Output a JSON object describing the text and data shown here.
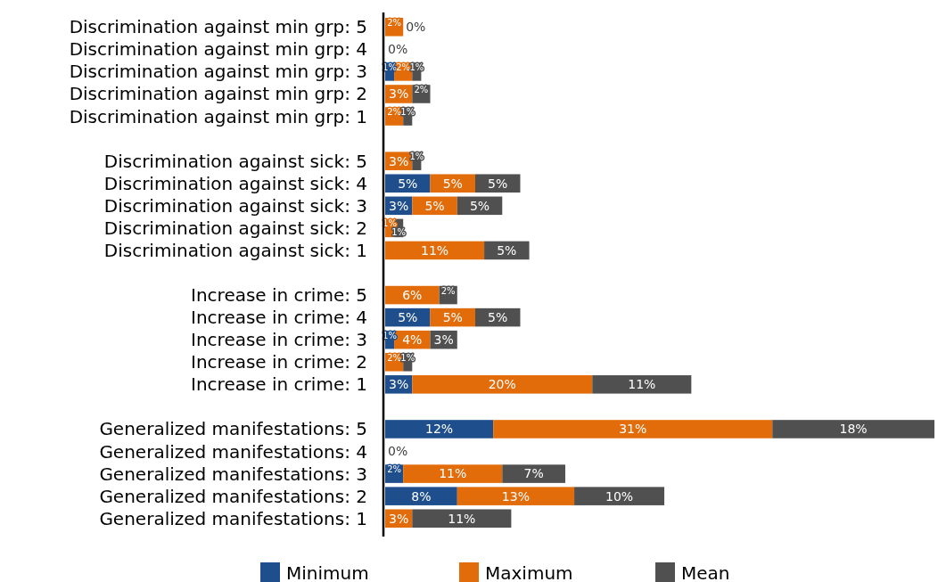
{
  "chart_data": {
    "type": "bar",
    "orientation": "horizontal",
    "stacked": true,
    "legend": "bottom",
    "categories": [
      "Discrimination against min grp: 5",
      "Discrimination against min grp: 4",
      "Discrimination against min grp: 3",
      "Discrimination against min grp: 2",
      "Discrimination against min grp: 1",
      null,
      "Discrimination against sick: 5",
      "Discrimination against sick: 4",
      "Discrimination against sick: 3",
      "Discrimination against sick: 2",
      "Discrimination against sick: 1",
      null,
      "Increase in crime: 5",
      "Increase in crime: 4",
      "Increase in crime: 3",
      "Increase in crime: 2",
      "Increase in crime: 1",
      null,
      "Generalized manifestations: 5",
      "Generalized manifestations: 4",
      "Generalized manifestations: 3",
      "Generalized manifestations: 2",
      "Generalized manifestations: 1"
    ],
    "series": [
      {
        "name": "Minimum",
        "color": "#1f4e8c",
        "values": [
          null,
          0,
          1,
          null,
          null,
          null,
          null,
          5,
          3,
          null,
          null,
          null,
          null,
          5,
          1,
          null,
          3,
          null,
          12,
          0,
          2,
          8,
          null
        ],
        "value_labels": [
          null,
          "0%",
          "1%",
          null,
          null,
          null,
          null,
          "5%",
          "3%",
          null,
          null,
          null,
          null,
          "5%",
          "1%",
          null,
          "3%",
          null,
          "12%",
          "0%",
          "2%",
          "8%",
          null
        ]
      },
      {
        "name": "Maximum",
        "color": "#e36c0a",
        "values": [
          2,
          null,
          2,
          3,
          2,
          null,
          3,
          5,
          5,
          1,
          11,
          null,
          6,
          5,
          4,
          2,
          20,
          null,
          31,
          null,
          11,
          13,
          3
        ],
        "value_labels": [
          "2%",
          null,
          "2%",
          "3%",
          "2%",
          null,
          "3%",
          "5%",
          "5%",
          "1%",
          "11%",
          null,
          "6%",
          "5%",
          "4%",
          "2%",
          "20%",
          null,
          "31%",
          null,
          "11%",
          "13%",
          "3%"
        ]
      },
      {
        "name": "Mean",
        "color": "#505050",
        "values": [
          0,
          null,
          1,
          2,
          1,
          null,
          1,
          5,
          5,
          1,
          5,
          null,
          2,
          5,
          3,
          1,
          11,
          null,
          18,
          null,
          7,
          10,
          11
        ],
        "value_labels": [
          "0%",
          null,
          "1%",
          "2%",
          "1%",
          null,
          "1%",
          "5%",
          "5%",
          "1%",
          "5%",
          null,
          "2%",
          "5%",
          "3%",
          "1%",
          "11%",
          null,
          "18%",
          null,
          "7%",
          "10%",
          "11%"
        ]
      }
    ]
  }
}
